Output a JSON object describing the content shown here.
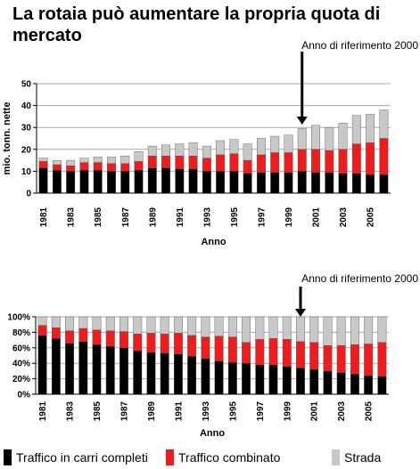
{
  "title": "La rotaia può aumentare la propria quota di mercato",
  "colors": {
    "carri_completi": "#000000",
    "combinato": "#ee1c1c",
    "strada": "#c8c8c8",
    "grid": "#a9a9a9"
  },
  "legend": [
    {
      "label": "Traffico in carri completi",
      "color": "#000000"
    },
    {
      "label": "Traffico combinato",
      "color": "#ee1c1c"
    },
    {
      "label": "Strada",
      "color": "#c8c8c8"
    }
  ],
  "chart_data": [
    {
      "type": "bar",
      "stacked": true,
      "categories": [
        "1981",
        "1982",
        "1983",
        "1984",
        "1985",
        "1986",
        "1987",
        "1988",
        "1989",
        "1990",
        "1991",
        "1992",
        "1993",
        "1994",
        "1995",
        "1996",
        "1997",
        "1998",
        "1999",
        "2000",
        "2001",
        "2002",
        "2003",
        "2004",
        "2005",
        "2006"
      ],
      "tick_labels": [
        "1981",
        "1983",
        "1985",
        "1987",
        "1989",
        "1991",
        "1993",
        "1995",
        "1997",
        "1999",
        "2001",
        "2003",
        "2005"
      ],
      "series": [
        {
          "name": "Traffico in carri completi",
          "values": [
            11.5,
            10.5,
            10,
            10.5,
            10.5,
            10,
            10,
            10.5,
            11.5,
            11.5,
            11,
            11,
            10,
            10,
            10,
            9,
            9.5,
            9.5,
            9.5,
            10,
            9.5,
            9.5,
            9,
            9,
            8.5,
            8.5
          ]
        },
        {
          "name": "Traffico combinato",
          "values": [
            3,
            2.5,
            2.5,
            3.5,
            3.5,
            3.5,
            3.5,
            4,
            5.5,
            5.5,
            6,
            6,
            6,
            7.5,
            8,
            6,
            8,
            9,
            9,
            10,
            10.5,
            10,
            11,
            13.5,
            14.5,
            16.5
          ]
        },
        {
          "name": "Strada",
          "values": [
            1.5,
            2,
            2.5,
            2,
            2.5,
            3,
            3.5,
            4.5,
            4.5,
            5,
            5.5,
            6,
            5.5,
            6.5,
            6.5,
            7.5,
            7.5,
            7.5,
            8,
            9.5,
            11,
            10.5,
            12,
            13,
            13,
            13
          ]
        }
      ],
      "xlabel": "Anno",
      "ylabel": "mio. tonn. nette",
      "ylim": [
        0,
        50
      ],
      "yticks": [
        "0",
        "10",
        "20",
        "30",
        "40",
        "50"
      ],
      "grid": true,
      "annotation": {
        "text": "Anno di riferimento 2000",
        "category": "2000"
      }
    },
    {
      "type": "bar",
      "stacked": true,
      "percent": true,
      "categories": [
        "1981",
        "1982",
        "1983",
        "1984",
        "1985",
        "1986",
        "1987",
        "1988",
        "1989",
        "1990",
        "1991",
        "1992",
        "1993",
        "1994",
        "1995",
        "1996",
        "1997",
        "1998",
        "1999",
        "2000",
        "2001",
        "2002",
        "2003",
        "2004",
        "2005",
        "2006"
      ],
      "tick_labels": [
        "1981",
        "1983",
        "1985",
        "1987",
        "1989",
        "1991",
        "1993",
        "1995",
        "1997",
        "1999",
        "2001",
        "2003",
        "2005"
      ],
      "series": [
        {
          "name": "Traffico in carri completi",
          "values": [
            76,
            72,
            66,
            68,
            64,
            62,
            60,
            56,
            54,
            53,
            52,
            49,
            46,
            43,
            41,
            40,
            38,
            38,
            36,
            34,
            32,
            30,
            28,
            26,
            24,
            23
          ]
        },
        {
          "name": "Traffico combinato",
          "values": [
            13,
            14,
            16,
            17,
            19,
            20,
            21,
            22,
            25,
            25,
            27,
            27,
            28,
            32,
            33,
            27,
            33,
            34,
            35,
            34,
            35,
            33,
            35,
            38,
            41,
            44
          ]
        },
        {
          "name": "Strada",
          "values": [
            11,
            14,
            18,
            15,
            17,
            18,
            19,
            22,
            21,
            22,
            21,
            24,
            26,
            25,
            26,
            33,
            29,
            28,
            29,
            32,
            33,
            37,
            37,
            36,
            35,
            33
          ]
        }
      ],
      "xlabel": "Anno",
      "ylim": [
        0,
        100
      ],
      "yticks": [
        "0%",
        "20%",
        "40%",
        "60%",
        "80%",
        "100%"
      ],
      "grid": true,
      "annotation": {
        "text": "Anno di riferimento 2000",
        "category": "2000"
      }
    }
  ]
}
